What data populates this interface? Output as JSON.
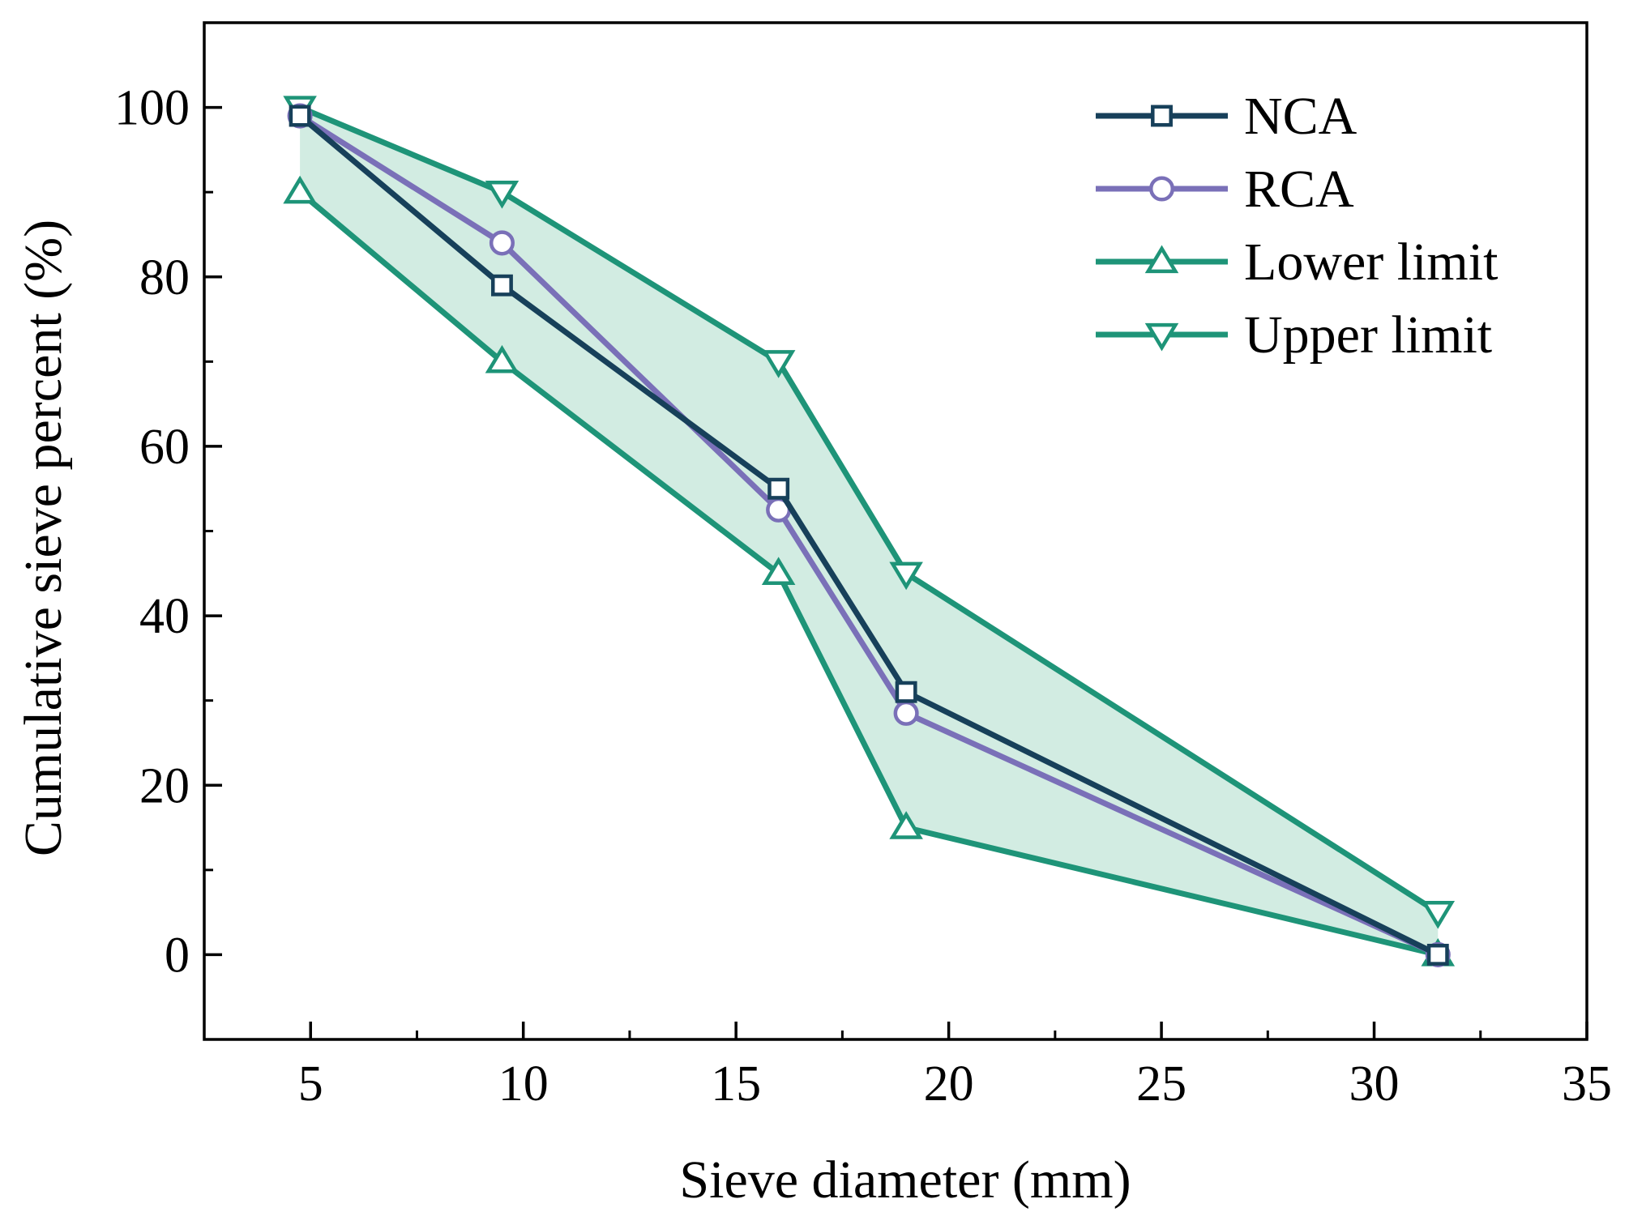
{
  "chart_data": {
    "type": "line",
    "title": "",
    "xlabel": "Sieve diameter (mm)",
    "ylabel": "Cumulative sieve percent (%)",
    "xlim": [
      2.5,
      35
    ],
    "ylim": [
      -10,
      110
    ],
    "xticks": [
      5,
      10,
      15,
      20,
      25,
      30,
      35
    ],
    "yticks": [
      0,
      20,
      40,
      60,
      80,
      100
    ],
    "grid": false,
    "legend_position": "top-right",
    "shaded_band": {
      "between": [
        "Lower limit",
        "Upper limit"
      ],
      "color": "#d2ece2"
    },
    "series": [
      {
        "name": "NCA",
        "marker": "square",
        "color": "#17405a",
        "x": [
          4.75,
          9.5,
          16,
          19,
          31.5
        ],
        "y": [
          99,
          79,
          55,
          31,
          0
        ]
      },
      {
        "name": "RCA",
        "marker": "circle",
        "color": "#7a70b8",
        "x": [
          4.75,
          9.5,
          16,
          19,
          31.5
        ],
        "y": [
          99,
          84,
          52.5,
          28.5,
          0
        ]
      },
      {
        "name": "Lower limit",
        "marker": "triangle-up",
        "color": "#1e9478",
        "x": [
          4.75,
          9.5,
          16,
          19,
          31.5
        ],
        "y": [
          90,
          70,
          45,
          15,
          0
        ]
      },
      {
        "name": "Upper limit",
        "marker": "triangle-down",
        "color": "#1e9478",
        "x": [
          4.75,
          9.5,
          16,
          19,
          31.5
        ],
        "y": [
          100,
          90,
          70,
          45,
          5
        ]
      }
    ]
  }
}
